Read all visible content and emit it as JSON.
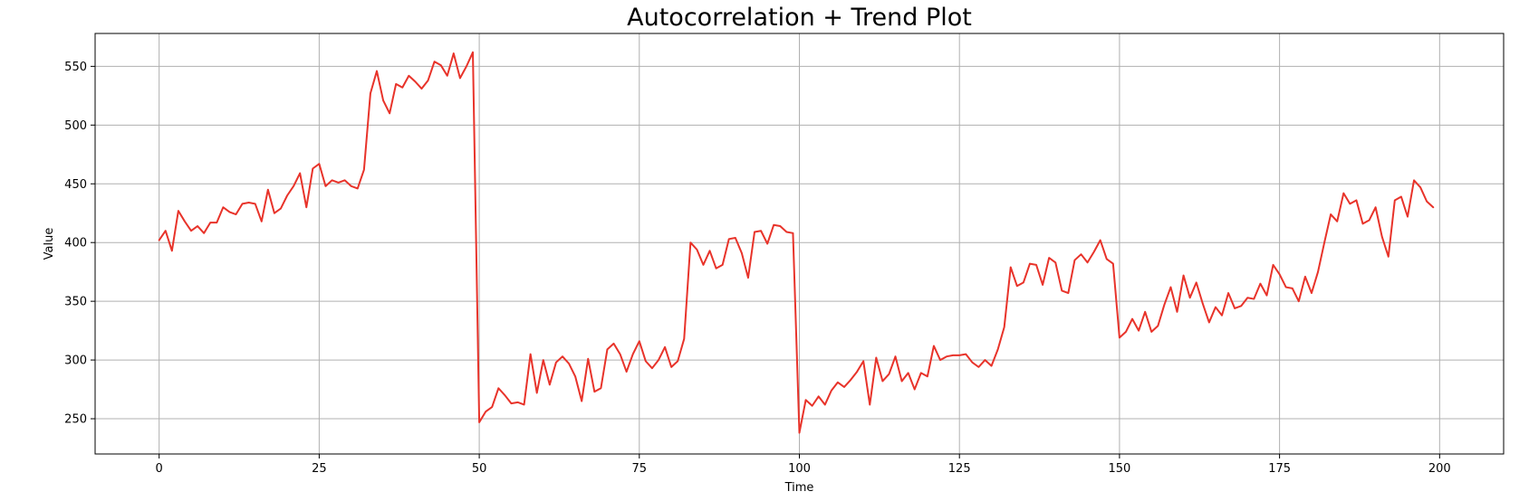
{
  "chart_data": {
    "type": "line",
    "title": "Autocorrelation + Trend Plot",
    "xlabel": "Time",
    "ylabel": "Value",
    "xlim": [
      -10,
      210
    ],
    "ylim": [
      220,
      578
    ],
    "grid": true,
    "xticks": [
      0,
      25,
      50,
      75,
      100,
      125,
      150,
      175,
      200
    ],
    "yticks": [
      250,
      300,
      350,
      400,
      450,
      500,
      550
    ],
    "series": [
      {
        "color": "#e8332a",
        "x_start": 0,
        "x_step": 1,
        "values": [
          402,
          410,
          393,
          427,
          418,
          410,
          414,
          408,
          417,
          417,
          430,
          426,
          424,
          433,
          434,
          433,
          418,
          445,
          425,
          429,
          440,
          448,
          459,
          430,
          463,
          467,
          448,
          453,
          451,
          453,
          448,
          446,
          462,
          527,
          546,
          521,
          510,
          535,
          532,
          542,
          537,
          531,
          538,
          554,
          551,
          542,
          561,
          540,
          550,
          562,
          247,
          256,
          260,
          276,
          270,
          263,
          264,
          262,
          305,
          272,
          300,
          279,
          298,
          303,
          297,
          286,
          265,
          301,
          273,
          276,
          309,
          314,
          305,
          290,
          305,
          316,
          299,
          293,
          300,
          311,
          294,
          299,
          318,
          400,
          394,
          381,
          393,
          378,
          381,
          403,
          404,
          391,
          370,
          409,
          410,
          399,
          415,
          414,
          409,
          408,
          238,
          266,
          261,
          269,
          262,
          274,
          281,
          277,
          283,
          290,
          299,
          262,
          302,
          282,
          288,
          303,
          282,
          289,
          275,
          289,
          286,
          312,
          300,
          303,
          304,
          304,
          305,
          298,
          294,
          300,
          295,
          309,
          328,
          379,
          363,
          366,
          382,
          381,
          364,
          387,
          383,
          359,
          357,
          385,
          390,
          383,
          392,
          402,
          386,
          382,
          319,
          324,
          335,
          325,
          341,
          324,
          329,
          347,
          362,
          341,
          372,
          353,
          366,
          348,
          332,
          345,
          338,
          357,
          344,
          346,
          353,
          352,
          365,
          355,
          381,
          373,
          362,
          361,
          350,
          371,
          357,
          375,
          400,
          424,
          418,
          442,
          433,
          436,
          416,
          419,
          430,
          405,
          388,
          436,
          439,
          422,
          453,
          447,
          435,
          430
        ]
      }
    ]
  }
}
